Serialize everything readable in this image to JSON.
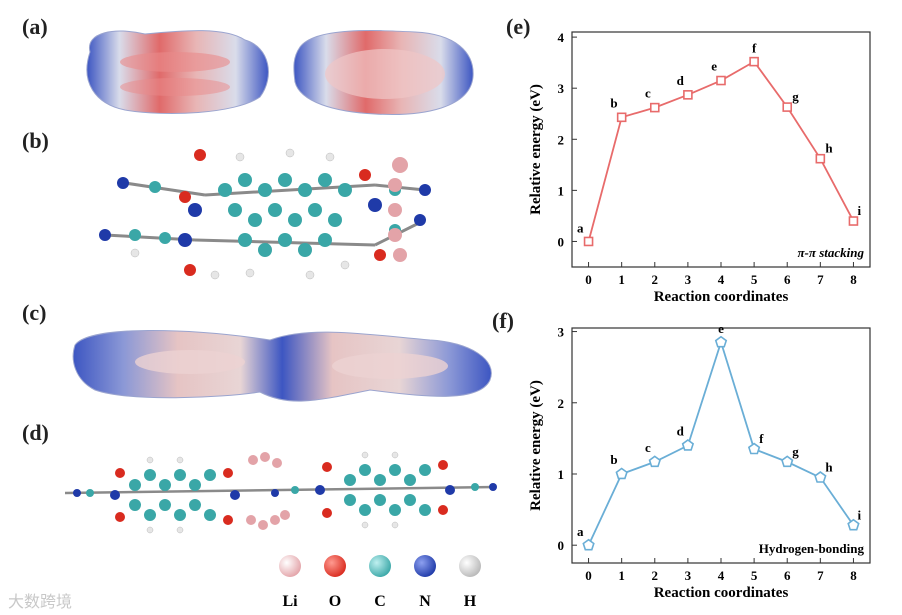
{
  "panels": {
    "a": "(a)",
    "b": "(b)",
    "c": "(c)",
    "d": "(d)",
    "e": "(e)",
    "f": "(f)"
  },
  "legend": {
    "items": [
      {
        "label": "Li",
        "color": "#e3a3a8"
      },
      {
        "label": "O",
        "color": "#d92b1f"
      },
      {
        "label": "C",
        "color": "#3aa7a7"
      },
      {
        "label": "N",
        "color": "#1f3aa8"
      },
      {
        "label": "H",
        "color": "#e6e6e6"
      }
    ]
  },
  "watermark": "大数跨境",
  "chart_data": [
    {
      "type": "line",
      "x": [
        0,
        1,
        2,
        3,
        4,
        5,
        6,
        7,
        8
      ],
      "point_labels": [
        "a",
        "b",
        "c",
        "d",
        "e",
        "f",
        "g",
        "h",
        "i"
      ],
      "series": [
        {
          "values": [
            0.0,
            2.43,
            2.62,
            2.87,
            3.15,
            3.52,
            2.63,
            1.62,
            0.4
          ],
          "color": "#e86b6b",
          "marker": "square"
        }
      ],
      "xlabel": "Reaction coordinates",
      "ylabel": "Relative energy (eV)",
      "annotation": "π-π stacking",
      "xlim": [
        -0.5,
        8.5
      ],
      "ylim": [
        -0.5,
        4.1
      ],
      "yticks": [
        0,
        1,
        2,
        3,
        4
      ],
      "xticks": [
        0,
        1,
        2,
        3,
        4,
        5,
        6,
        7,
        8
      ],
      "grid": false
    },
    {
      "type": "line",
      "x": [
        0,
        1,
        2,
        3,
        4,
        5,
        6,
        7,
        8
      ],
      "point_labels": [
        "a",
        "b",
        "c",
        "d",
        "e",
        "f",
        "g",
        "h",
        "i"
      ],
      "series": [
        {
          "values": [
            0.0,
            1.0,
            1.17,
            1.4,
            2.85,
            1.35,
            1.17,
            0.95,
            0.28
          ],
          "color": "#6aaed6",
          "marker": "pentagon"
        }
      ],
      "xlabel": "Reaction coordinates",
      "ylabel": "Relative energy (eV)",
      "annotation": "Hydrogen-bonding",
      "xlim": [
        -0.5,
        8.5
      ],
      "ylim": [
        -0.25,
        3.05
      ],
      "yticks": [
        0,
        1,
        2,
        3
      ],
      "xticks": [
        0,
        1,
        2,
        3,
        4,
        5,
        6,
        7,
        8
      ],
      "grid": false
    }
  ]
}
